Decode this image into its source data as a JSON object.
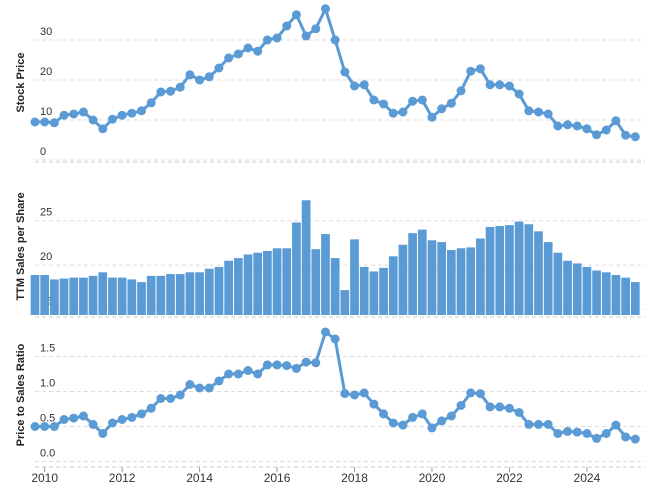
{
  "chart_data": [
    {
      "type": "line",
      "ylabel": "Stock Price",
      "color": "#5b9bd5",
      "grid": true,
      "x": [
        2009.75,
        2010,
        2010.25,
        2010.5,
        2010.75,
        2011,
        2011.25,
        2011.5,
        2011.75,
        2012,
        2012.25,
        2012.5,
        2012.75,
        2013,
        2013.25,
        2013.5,
        2013.75,
        2014,
        2014.25,
        2014.5,
        2014.75,
        2015,
        2015.25,
        2015.5,
        2015.75,
        2016,
        2016.25,
        2016.5,
        2016.75,
        2017,
        2017.25,
        2017.5,
        2017.75,
        2018,
        2018.25,
        2018.5,
        2018.75,
        2019,
        2019.25,
        2019.5,
        2019.75,
        2020,
        2020.25,
        2020.5,
        2020.75,
        2021,
        2021.25,
        2021.5,
        2021.75,
        2022,
        2022.25,
        2022.5,
        2022.75,
        2023,
        2023.25,
        2023.5,
        2023.75,
        2024,
        2024.25,
        2024.5,
        2024.75,
        2025,
        2025.25
      ],
      "values": [
        9.5,
        9.5,
        9.3,
        11.2,
        11.5,
        12,
        10,
        7.8,
        10.2,
        11.2,
        11.7,
        12.3,
        14.3,
        17,
        17.2,
        18.2,
        21.3,
        20,
        20.8,
        23,
        25.5,
        26.5,
        28,
        27.2,
        30,
        30.5,
        33.5,
        36.3,
        31,
        32.8,
        37.8,
        30,
        22,
        18.5,
        18.8,
        15,
        14,
        11.7,
        12,
        14.7,
        15,
        10.7,
        12.8,
        14.2,
        17.3,
        22.2,
        22.8,
        18.8,
        18.8,
        18.5,
        16.5,
        12.3,
        12,
        11.5,
        8.5,
        8.8,
        8.5,
        7.8,
        6.3,
        7.5,
        9.8,
        6.2,
        5.8
      ],
      "xlim": [
        2009.75,
        2025.5
      ],
      "ylim": [
        0,
        38.75
      ],
      "yticks": [
        0,
        10,
        20,
        30
      ]
    },
    {
      "type": "bar",
      "ylabel": "TTM Sales per Share",
      "color": "#5b9bd5",
      "grid": true,
      "x": [
        2009.75,
        2010,
        2010.25,
        2010.5,
        2010.75,
        2011,
        2011.25,
        2011.5,
        2011.75,
        2012,
        2012.25,
        2012.5,
        2012.75,
        2013,
        2013.25,
        2013.5,
        2013.75,
        2014,
        2014.25,
        2014.5,
        2014.75,
        2015,
        2015.25,
        2015.5,
        2015.75,
        2016,
        2016.25,
        2016.5,
        2016.75,
        2017,
        2017.25,
        2017.5,
        2017.75,
        2018,
        2018.25,
        2018.5,
        2018.75,
        2019,
        2019.25,
        2019.5,
        2019.75,
        2020,
        2020.25,
        2020.5,
        2020.75,
        2021,
        2021.25,
        2021.5,
        2021.75,
        2022,
        2022.25,
        2022.5,
        2022.75,
        2023,
        2023.25,
        2023.5,
        2023.75,
        2024,
        2024.25,
        2024.5,
        2024.75,
        2025,
        2025.25
      ],
      "values": [
        18.9,
        18.9,
        18.4,
        18.5,
        18.6,
        18.6,
        18.8,
        19.2,
        18.6,
        18.6,
        18.4,
        18.1,
        18.8,
        18.8,
        19.0,
        19.0,
        19.2,
        19.2,
        19.6,
        19.8,
        20.5,
        20.8,
        21.2,
        21.4,
        21.6,
        21.9,
        21.9,
        24.8,
        27.3,
        21.8,
        23.5,
        20.8,
        17.2,
        22.9,
        19.8,
        19.3,
        19.7,
        21,
        22.3,
        23.6,
        24,
        22.8,
        22.6,
        21.7,
        21.9,
        22,
        23,
        24.3,
        24.4,
        24.5,
        24.9,
        24.6,
        23.8,
        22.6,
        21.4,
        20.5,
        20.2,
        19.8,
        19.4,
        19.2,
        18.9,
        18.6,
        18.1
      ],
      "xlim": [
        2009.75,
        2025.5
      ],
      "ylim": [
        14.4,
        29.8
      ],
      "yticks": [
        15,
        20,
        25
      ]
    },
    {
      "type": "line",
      "ylabel": "Price to Sales Ratio",
      "color": "#5b9bd5",
      "grid": true,
      "x": [
        2009.75,
        2010,
        2010.25,
        2010.5,
        2010.75,
        2011,
        2011.25,
        2011.5,
        2011.75,
        2012,
        2012.25,
        2012.5,
        2012.75,
        2013,
        2013.25,
        2013.5,
        2013.75,
        2014,
        2014.25,
        2014.5,
        2014.75,
        2015,
        2015.25,
        2015.5,
        2015.75,
        2016,
        2016.25,
        2016.5,
        2016.75,
        2017,
        2017.25,
        2017.5,
        2017.75,
        2018,
        2018.25,
        2018.5,
        2018.75,
        2019,
        2019.25,
        2019.5,
        2019.75,
        2020,
        2020.25,
        2020.5,
        2020.75,
        2021,
        2021.25,
        2021.5,
        2021.75,
        2022,
        2022.25,
        2022.5,
        2022.75,
        2023,
        2023.25,
        2023.5,
        2023.75,
        2024,
        2024.25,
        2024.5,
        2024.75,
        2025,
        2025.25
      ],
      "values": [
        0.5,
        0.5,
        0.5,
        0.6,
        0.62,
        0.65,
        0.53,
        0.4,
        0.55,
        0.6,
        0.63,
        0.68,
        0.76,
        0.9,
        0.9,
        0.95,
        1.1,
        1.05,
        1.05,
        1.15,
        1.25,
        1.25,
        1.3,
        1.25,
        1.38,
        1.38,
        1.37,
        1.33,
        1.42,
        1.41,
        1.85,
        1.75,
        0.97,
        0.95,
        0.98,
        0.82,
        0.68,
        0.55,
        0.52,
        0.63,
        0.68,
        0.48,
        0.58,
        0.65,
        0.8,
        0.98,
        0.97,
        0.78,
        0.78,
        0.76,
        0.7,
        0.53,
        0.53,
        0.53,
        0.4,
        0.43,
        0.42,
        0.4,
        0.33,
        0.4,
        0.52,
        0.35,
        0.32
      ],
      "xlim": [
        2009.75,
        2025.5
      ],
      "ylim": [
        -0.05,
        1.95
      ],
      "yticks": [
        {
          "value": 0,
          "label": "0.0"
        },
        0.5,
        {
          "value": 1,
          "label": "1.0"
        },
        1.5
      ],
      "xticks": [
        2010,
        2012,
        2014,
        2016,
        2018,
        2020,
        2022,
        2024
      ]
    }
  ]
}
